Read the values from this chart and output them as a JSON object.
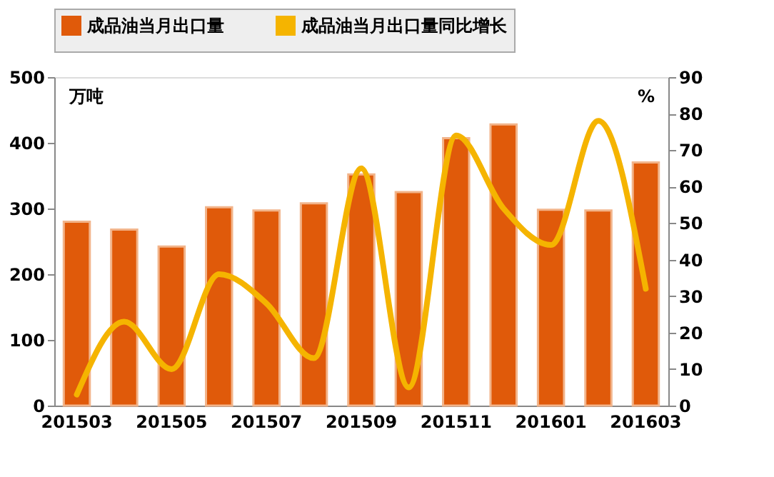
{
  "chart_data": {
    "type": "bar",
    "categories": [
      "201503",
      null,
      "201505",
      null,
      "201507",
      null,
      "201509",
      null,
      "201511",
      null,
      "201601",
      null,
      "201603"
    ],
    "series": [
      {
        "name": "成品油当月出口量",
        "color": "#e05a0a",
        "values": [
          280,
          268,
          242,
          302,
          297,
          308,
          352,
          325,
          407,
          428,
          298,
          297,
          370
        ]
      },
      {
        "name": "成品油当月出口量同比增长",
        "type": "line",
        "axis": "y2",
        "color": "#f5b400",
        "values": [
          3,
          23,
          10,
          36,
          28,
          13,
          65,
          5,
          74,
          54,
          44,
          78,
          32
        ]
      }
    ],
    "ylabel": "万吨",
    "y2label": "%",
    "ylim": [
      0,
      500
    ],
    "yticks": [
      0,
      100,
      200,
      300,
      400,
      500
    ],
    "y2lim": [
      0,
      90
    ],
    "y2ticks": [
      0,
      10,
      20,
      30,
      40,
      50,
      60,
      70,
      80,
      90
    ],
    "legend": "top",
    "grid": false,
    "marker": "none",
    "line_style": "solid"
  }
}
